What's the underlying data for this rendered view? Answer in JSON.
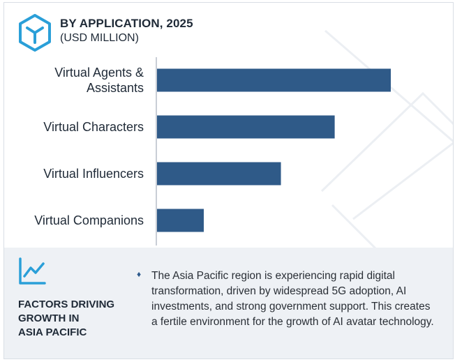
{
  "header": {
    "title": "BY APPLICATION, 2025",
    "subtitle": "(USD MILLION)",
    "icon": "cube-outline-icon"
  },
  "chart_data": {
    "type": "bar",
    "orientation": "horizontal",
    "title": "BY APPLICATION, 2025",
    "subtitle": "(USD MILLION)",
    "categories": [
      [
        "Virtual Agents &",
        "Assistants"
      ],
      [
        "Virtual Characters"
      ],
      [
        "Virtual Influencers"
      ],
      [
        "Virtual Companions"
      ]
    ],
    "values": [
      100,
      76,
      53,
      20
    ],
    "value_scale": "relative (no axis printed)",
    "grid": false,
    "bar_color": "#2f5a88",
    "axis_color": "#c9ced6"
  },
  "factors": {
    "icon": "trend-line-chart-icon",
    "title_lines": [
      "FACTORS DRIVING",
      "GROWTH IN",
      "ASIA PACIFIC"
    ],
    "bullet_icon": "diamond-bullet-icon",
    "bullet_text": "The Asia Pacific region is experiencing rapid digital transformation, driven by widespread 5G adoption, AI investments, and strong government support. This creates a fertile environment for the growth of AI avatar technology."
  },
  "colors": {
    "accent": "#2f5a88",
    "icon_blue": "#2a9fd8",
    "panel_bg": "#eef1f5"
  }
}
